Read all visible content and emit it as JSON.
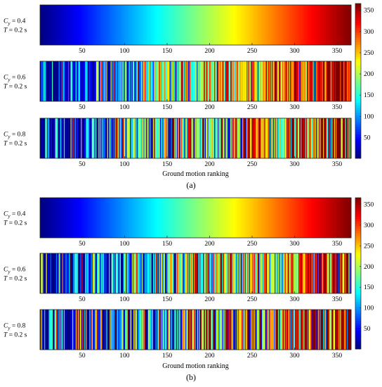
{
  "chart_data": [
    {
      "type": "heatmap",
      "panel_label": "(a)",
      "x": {
        "range": [
          1,
          366
        ],
        "ticks": [
          50,
          100,
          150,
          200,
          250,
          300,
          350
        ],
        "label": "Ground motion ranking"
      },
      "colorbar": {
        "range": [
          1,
          366
        ],
        "ticks": [
          50,
          100,
          150,
          200,
          250,
          300,
          350
        ],
        "colormap": "jet"
      },
      "rows": [
        {
          "line1": "C",
          "sub": "y",
          "value_text": " = 0.4",
          "line2": "T",
          "line2_value": " = 0.2 s",
          "disorder": 0.0,
          "seed": 11
        },
        {
          "line1": "C",
          "sub": "y",
          "value_text": " = 0.6",
          "line2": "T",
          "line2_value": " = 0.2 s",
          "disorder": 0.35,
          "seed": 23
        },
        {
          "line1": "C",
          "sub": "y",
          "value_text": " = 0.8",
          "line2": "T",
          "line2_value": " = 0.2 s",
          "disorder": 0.55,
          "seed": 37
        }
      ]
    },
    {
      "type": "heatmap",
      "panel_label": "(b)",
      "x": {
        "range": [
          1,
          366
        ],
        "ticks": [
          50,
          100,
          150,
          200,
          250,
          300,
          350
        ],
        "label": "Ground motion ranking"
      },
      "colorbar": {
        "range": [
          1,
          366
        ],
        "ticks": [
          50,
          100,
          150,
          200,
          250,
          300,
          350
        ],
        "colormap": "jet"
      },
      "rows": [
        {
          "line1": "C",
          "sub": "y",
          "value_text": " = 0.4",
          "line2": "T",
          "line2_value": " = 0.2 s",
          "disorder": 0.0,
          "seed": 51
        },
        {
          "line1": "C",
          "sub": "y",
          "value_text": " = 0.6",
          "line2": "T",
          "line2_value": " = 0.2 s",
          "disorder": 0.4,
          "seed": 67
        },
        {
          "line1": "C",
          "sub": "y",
          "value_text": " = 0.8",
          "line2": "T",
          "line2_value": " = 0.2 s",
          "disorder": 0.6,
          "seed": 79
        }
      ]
    }
  ]
}
